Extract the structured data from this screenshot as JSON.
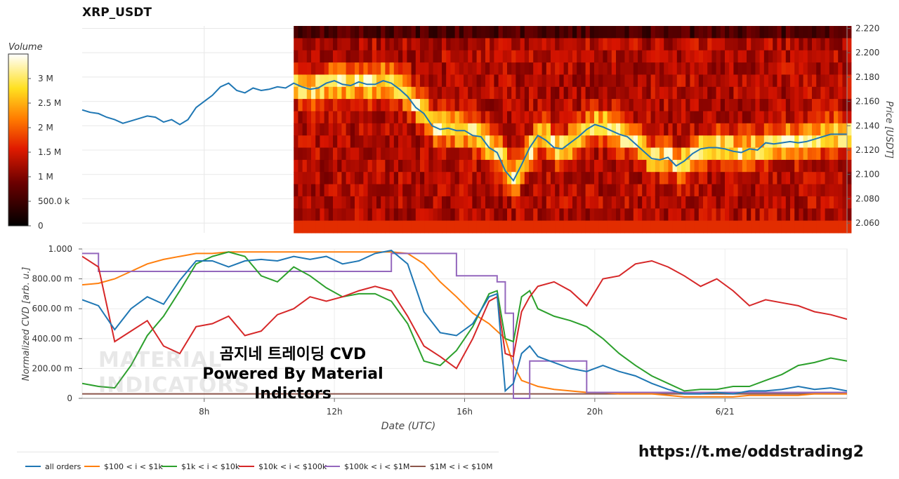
{
  "title": "XRP_USDT",
  "colorbar": {
    "label": "Volume",
    "ticks": [
      "3 M",
      "2.5 M",
      "2 M",
      "1.5 M",
      "1 M",
      "500.0 k",
      "0"
    ],
    "tick_values": [
      3000000,
      2500000,
      2000000,
      1500000,
      1000000,
      500000,
      0
    ],
    "range": [
      0,
      3500000
    ]
  },
  "colors": {
    "all_orders": "#1f77b4",
    "r100_1k": "#ff7f0e",
    "r1k_10k": "#2ca02c",
    "r10k_100k": "#d62728",
    "r100k_1m": "#9467bd",
    "r1m_10m": "#8c564b"
  },
  "legend": [
    {
      "label": "all orders",
      "color": "#1f77b4"
    },
    {
      "label": "$100 < i < $1k",
      "color": "#ff7f0e"
    },
    {
      "label": "$1k < i < $10k",
      "color": "#2ca02c"
    },
    {
      "label": "$10k < i < $100k",
      "color": "#d62728"
    },
    {
      "label": "$100k < i < $1M",
      "color": "#9467bd"
    },
    {
      "label": "$1M < i < $10M",
      "color": "#8c564b"
    }
  ],
  "watermark": {
    "line1": "곰지네 트레이딩 CVD",
    "line2": "Powered By Material Indictors",
    "logo1": "MATERIAL",
    "logo2": "INDICATORS"
  },
  "url": "https://t.me/oddstrading2",
  "chart_data": [
    {
      "type": "line",
      "name": "price-with-heatmap",
      "ylabel": "Price [USDT]",
      "ylim": [
        2.052,
        2.222
      ],
      "y_ticks": [
        "2.220",
        "2.200",
        "2.180",
        "2.160",
        "2.140",
        "2.120",
        "2.100",
        "2.080",
        "2.060"
      ],
      "y_tick_values": [
        2.22,
        2.2,
        2.18,
        2.16,
        2.14,
        2.12,
        2.1,
        2.08,
        2.06
      ],
      "x_hours_range": [
        4.25,
        27.75
      ],
      "heatmap_start_hour": 10.75,
      "price": {
        "x": [
          4.25,
          4.5,
          4.75,
          5.0,
          5.25,
          5.5,
          5.75,
          6.0,
          6.25,
          6.5,
          6.75,
          7.0,
          7.25,
          7.5,
          7.75,
          8.0,
          8.25,
          8.5,
          8.75,
          9.0,
          9.25,
          9.5,
          9.75,
          10.0,
          10.25,
          10.5,
          10.75,
          11.0,
          11.25,
          11.5,
          11.75,
          12.0,
          12.25,
          12.5,
          12.75,
          13.0,
          13.25,
          13.5,
          13.75,
          14.0,
          14.25,
          14.5,
          14.75,
          15.0,
          15.25,
          15.5,
          15.75,
          16.0,
          16.25,
          16.5,
          16.75,
          17.0,
          17.25,
          17.5,
          17.75,
          18.0,
          18.25,
          18.5,
          18.75,
          19.0,
          19.25,
          19.5,
          19.75,
          20.0,
          20.25,
          20.5,
          20.75,
          21.0,
          21.25,
          21.5,
          21.75,
          22.0,
          22.25,
          22.5,
          22.75,
          23.0,
          23.25,
          23.5,
          23.75,
          24.0,
          24.25,
          24.5,
          24.75,
          25.0,
          25.25,
          25.5,
          25.75,
          26.0,
          26.25,
          26.5,
          26.75,
          27.0,
          27.25,
          27.5,
          27.75
        ],
        "y": [
          2.153,
          2.151,
          2.15,
          2.147,
          2.145,
          2.142,
          2.144,
          2.146,
          2.148,
          2.147,
          2.143,
          2.145,
          2.141,
          2.145,
          2.155,
          2.16,
          2.165,
          2.172,
          2.175,
          2.169,
          2.167,
          2.171,
          2.169,
          2.17,
          2.172,
          2.171,
          2.175,
          2.172,
          2.17,
          2.171,
          2.175,
          2.177,
          2.174,
          2.173,
          2.176,
          2.174,
          2.174,
          2.177,
          2.175,
          2.17,
          2.164,
          2.155,
          2.15,
          2.14,
          2.137,
          2.138,
          2.136,
          2.136,
          2.132,
          2.131,
          2.122,
          2.118,
          2.103,
          2.095,
          2.108,
          2.122,
          2.132,
          2.128,
          2.122,
          2.121,
          2.126,
          2.131,
          2.137,
          2.141,
          2.139,
          2.136,
          2.133,
          2.131,
          2.125,
          2.119,
          2.113,
          2.112,
          2.114,
          2.107,
          2.111,
          2.117,
          2.121,
          2.122,
          2.122,
          2.121,
          2.119,
          2.118,
          2.121,
          2.12,
          2.126,
          2.125,
          2.126,
          2.127,
          2.126,
          2.127,
          2.129,
          2.131,
          2.133,
          2.133,
          2.133
        ]
      }
    },
    {
      "type": "line",
      "name": "normalized-cvd",
      "xlabel": "Date (UTC)",
      "ylabel": "Normalized CVD [arb. u.]",
      "ylim": [
        0,
        1
      ],
      "y_ticks": [
        "1.000",
        "800.00 m",
        "600.00 m",
        "400.00 m",
        "200.00 m",
        "0"
      ],
      "y_tick_values": [
        1.0,
        0.8,
        0.6,
        0.4,
        0.2,
        0
      ],
      "x_ticks": [
        "8h",
        "12h",
        "16h",
        "20h",
        "6/21"
      ],
      "x_tick_values": [
        8,
        12,
        16,
        20,
        24
      ],
      "x_hours_range": [
        4.25,
        27.75
      ],
      "x": [
        4.25,
        4.75,
        5.25,
        5.75,
        6.25,
        6.75,
        7.25,
        7.75,
        8.25,
        8.75,
        9.25,
        9.75,
        10.25,
        10.75,
        11.25,
        11.75,
        12.25,
        12.75,
        13.25,
        13.75,
        14.25,
        14.75,
        15.25,
        15.75,
        16.25,
        16.75,
        17.0,
        17.25,
        17.5,
        17.75,
        18.0,
        18.25,
        18.75,
        19.25,
        19.75,
        20.25,
        20.75,
        21.25,
        21.75,
        22.25,
        22.75,
        23.25,
        23.75,
        24.25,
        24.75,
        25.25,
        25.75,
        26.25,
        26.75,
        27.25,
        27.75
      ],
      "series": [
        {
          "name": "all orders",
          "values": [
            0.66,
            0.62,
            0.46,
            0.6,
            0.68,
            0.63,
            0.79,
            0.92,
            0.92,
            0.88,
            0.92,
            0.93,
            0.92,
            0.95,
            0.93,
            0.95,
            0.9,
            0.92,
            0.97,
            0.99,
            0.9,
            0.58,
            0.44,
            0.42,
            0.5,
            0.68,
            0.7,
            0.05,
            0.1,
            0.3,
            0.35,
            0.28,
            0.24,
            0.2,
            0.18,
            0.22,
            0.18,
            0.15,
            0.1,
            0.06,
            0.03,
            0.03,
            0.04,
            0.03,
            0.05,
            0.05,
            0.06,
            0.08,
            0.06,
            0.07,
            0.05
          ]
        },
        {
          "name": "$100 < i < $1k",
          "values": [
            0.76,
            0.77,
            0.8,
            0.85,
            0.9,
            0.93,
            0.95,
            0.97,
            0.97,
            0.98,
            0.98,
            0.98,
            0.98,
            0.98,
            0.98,
            0.98,
            0.98,
            0.98,
            0.98,
            0.98,
            0.97,
            0.9,
            0.78,
            0.68,
            0.57,
            0.5,
            0.45,
            0.4,
            0.22,
            0.12,
            0.1,
            0.08,
            0.06,
            0.05,
            0.04,
            0.04,
            0.03,
            0.03,
            0.03,
            0.02,
            0.01,
            0.01,
            0.01,
            0.01,
            0.02,
            0.02,
            0.02,
            0.02,
            0.03,
            0.03,
            0.03
          ]
        },
        {
          "name": "$1k < i < $10k",
          "values": [
            0.1,
            0.08,
            0.07,
            0.22,
            0.42,
            0.55,
            0.72,
            0.9,
            0.95,
            0.98,
            0.95,
            0.82,
            0.78,
            0.88,
            0.82,
            0.74,
            0.68,
            0.7,
            0.7,
            0.65,
            0.5,
            0.25,
            0.22,
            0.32,
            0.48,
            0.7,
            0.72,
            0.4,
            0.38,
            0.68,
            0.72,
            0.6,
            0.55,
            0.52,
            0.48,
            0.4,
            0.3,
            0.22,
            0.15,
            0.1,
            0.05,
            0.06,
            0.06,
            0.08,
            0.08,
            0.12,
            0.16,
            0.22,
            0.24,
            0.27,
            0.25
          ]
        },
        {
          "name": "$10k < i < $100k",
          "values": [
            0.95,
            0.88,
            0.38,
            0.45,
            0.52,
            0.35,
            0.3,
            0.48,
            0.5,
            0.55,
            0.42,
            0.45,
            0.56,
            0.6,
            0.68,
            0.65,
            0.68,
            0.72,
            0.75,
            0.72,
            0.55,
            0.35,
            0.28,
            0.2,
            0.4,
            0.65,
            0.68,
            0.3,
            0.28,
            0.58,
            0.68,
            0.75,
            0.78,
            0.72,
            0.62,
            0.8,
            0.82,
            0.9,
            0.92,
            0.88,
            0.82,
            0.75,
            0.8,
            0.72,
            0.62,
            0.66,
            0.64,
            0.62,
            0.58,
            0.56,
            0.53
          ]
        },
        {
          "name": "$100k < i < $1M",
          "values": [
            0.97,
            0.85,
            0.85,
            0.85,
            0.85,
            0.85,
            0.85,
            0.85,
            0.85,
            0.85,
            0.85,
            0.85,
            0.85,
            0.85,
            0.85,
            0.85,
            0.85,
            0.85,
            0.85,
            0.97,
            0.97,
            0.97,
            0.97,
            0.82,
            0.82,
            0.82,
            0.78,
            0.57,
            0.0,
            0.0,
            0.25,
            0.25,
            0.25,
            0.25,
            0.04,
            0.04,
            0.04,
            0.04,
            0.04,
            0.04,
            0.04,
            0.04,
            0.04,
            0.04,
            0.04,
            0.04,
            0.04,
            0.04,
            0.04,
            0.04,
            0.04
          ]
        },
        {
          "name": "$1M < i < $10M",
          "values": [
            0.03,
            0.03,
            0.03,
            0.03,
            0.03,
            0.03,
            0.03,
            0.03,
            0.03,
            0.03,
            0.03,
            0.03,
            0.03,
            0.03,
            0.03,
            0.03,
            0.03,
            0.03,
            0.03,
            0.03,
            0.03,
            0.03,
            0.03,
            0.03,
            0.03,
            0.03,
            0.03,
            0.03,
            0.03,
            0.03,
            0.03,
            0.03,
            0.03,
            0.03,
            0.03,
            0.03,
            0.03,
            0.03,
            0.03,
            0.03,
            0.03,
            0.03,
            0.03,
            0.03,
            0.03,
            0.03,
            0.03,
            0.03,
            0.03,
            0.03,
            0.03
          ]
        }
      ]
    }
  ]
}
